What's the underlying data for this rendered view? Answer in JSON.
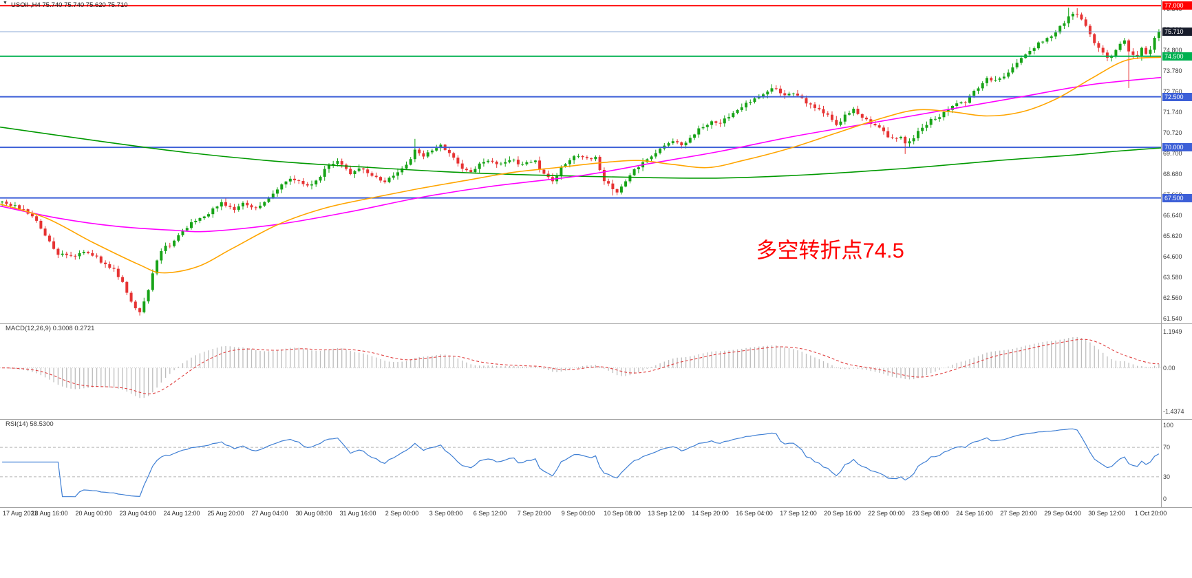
{
  "window": {
    "bg": "#ffffff"
  },
  "header": {
    "dropdown_icon": "▼",
    "title": "USOil-,H4  75.740 75.740 75.620 75.710",
    "symbol": "USOil-",
    "timeframe": "H4",
    "open": "75.740",
    "high": "75.740",
    "low": "75.620",
    "close": "75.710"
  },
  "colors": {
    "candle_up": "#17a317",
    "candle_down": "#e63333",
    "separator": "#a3a3a3",
    "level_dash": "#b5b5b5",
    "tick_text": "#3a3a3a",
    "time_text": "#2b2b2b"
  },
  "chart_data": {
    "type": "candlestick",
    "symbol": "USOil-",
    "timeframe": "H4",
    "last_ohlc": {
      "open": 75.74,
      "high": 75.74,
      "low": 75.62,
      "close": 75.71
    },
    "price_max_view": 77.28,
    "price_min_view": 61.3,
    "y_axis_ticks": [
      "76.840",
      "75.820",
      "74.800",
      "73.780",
      "72.760",
      "71.740",
      "70.720",
      "69.700",
      "68.680",
      "67.660",
      "66.640",
      "65.620",
      "64.600",
      "63.580",
      "62.560",
      "61.540"
    ],
    "hlines": [
      {
        "price": 77.0,
        "label": "77.000",
        "color": "#ff0000",
        "label_bg": "#ff0000",
        "width": 2
      },
      {
        "price": 75.71,
        "label": "75.710",
        "color": "#7d9fd0",
        "label_bg": "#171c2b",
        "width": 1
      },
      {
        "price": 74.5,
        "label": "74.500",
        "color": "#00b050",
        "label_bg": "#00b050",
        "width": 2
      },
      {
        "price": 72.5,
        "label": "72.500",
        "color": "#3c5fd7",
        "label_bg": "#3c5fd7",
        "width": 2
      },
      {
        "price": 70.0,
        "label": "70.000",
        "color": "#3c5fd7",
        "label_bg": "#3c5fd7",
        "width": 2
      },
      {
        "price": 67.5,
        "label": "67.500",
        "color": "#3c5fd7",
        "label_bg": "#3c5fd7",
        "width": 2
      }
    ],
    "annotation": {
      "text": "多空转折点74.5",
      "color": "#ff0000",
      "x_frac": 0.715,
      "price": 65.0
    },
    "num_candles": 270,
    "close_path": [
      [
        0,
        67.25
      ],
      [
        0.012,
        67.05
      ],
      [
        0.02,
        66.85
      ],
      [
        0.03,
        66.3
      ],
      [
        0.038,
        65.6
      ],
      [
        0.048,
        64.75
      ],
      [
        0.06,
        64.6
      ],
      [
        0.072,
        64.9
      ],
      [
        0.082,
        64.55
      ],
      [
        0.09,
        64.15
      ],
      [
        0.098,
        63.9
      ],
      [
        0.104,
        63.3
      ],
      [
        0.109,
        62.7
      ],
      [
        0.113,
        62.25
      ],
      [
        0.119,
        61.9
      ],
      [
        0.125,
        62.6
      ],
      [
        0.13,
        63.8
      ],
      [
        0.137,
        64.9
      ],
      [
        0.145,
        65.2
      ],
      [
        0.152,
        65.6
      ],
      [
        0.16,
        66.1
      ],
      [
        0.17,
        66.5
      ],
      [
        0.18,
        66.8
      ],
      [
        0.19,
        67.3
      ],
      [
        0.2,
        66.95
      ],
      [
        0.21,
        67.25
      ],
      [
        0.22,
        66.95
      ],
      [
        0.23,
        67.5
      ],
      [
        0.24,
        68.1
      ],
      [
        0.25,
        68.45
      ],
      [
        0.258,
        68.3
      ],
      [
        0.266,
        68.0
      ],
      [
        0.274,
        68.55
      ],
      [
        0.282,
        69.1
      ],
      [
        0.29,
        69.35
      ],
      [
        0.3,
        68.7
      ],
      [
        0.31,
        68.95
      ],
      [
        0.32,
        68.55
      ],
      [
        0.33,
        68.3
      ],
      [
        0.34,
        68.7
      ],
      [
        0.35,
        69.1
      ],
      [
        0.358,
        69.95
      ],
      [
        0.364,
        69.55
      ],
      [
        0.372,
        69.85
      ],
      [
        0.38,
        70.1
      ],
      [
        0.388,
        69.6
      ],
      [
        0.396,
        69.05
      ],
      [
        0.404,
        68.75
      ],
      [
        0.412,
        69.15
      ],
      [
        0.42,
        69.3
      ],
      [
        0.43,
        69.2
      ],
      [
        0.44,
        69.45
      ],
      [
        0.45,
        69.1
      ],
      [
        0.46,
        69.35
      ],
      [
        0.468,
        68.7
      ],
      [
        0.476,
        68.25
      ],
      [
        0.482,
        68.9
      ],
      [
        0.49,
        69.4
      ],
      [
        0.498,
        69.55
      ],
      [
        0.506,
        69.4
      ],
      [
        0.513,
        69.6
      ],
      [
        0.52,
        68.4
      ],
      [
        0.527,
        67.95
      ],
      [
        0.533,
        67.75
      ],
      [
        0.54,
        68.5
      ],
      [
        0.548,
        69.0
      ],
      [
        0.556,
        69.3
      ],
      [
        0.564,
        69.75
      ],
      [
        0.572,
        70.05
      ],
      [
        0.58,
        70.3
      ],
      [
        0.588,
        70.1
      ],
      [
        0.596,
        70.6
      ],
      [
        0.604,
        70.95
      ],
      [
        0.612,
        71.25
      ],
      [
        0.62,
        71.1
      ],
      [
        0.628,
        71.55
      ],
      [
        0.636,
        71.9
      ],
      [
        0.644,
        72.2
      ],
      [
        0.652,
        72.45
      ],
      [
        0.66,
        72.75
      ],
      [
        0.668,
        72.9
      ],
      [
        0.676,
        72.6
      ],
      [
        0.684,
        72.7
      ],
      [
        0.692,
        72.35
      ],
      [
        0.7,
        72.05
      ],
      [
        0.708,
        71.75
      ],
      [
        0.716,
        71.45
      ],
      [
        0.722,
        71.05
      ],
      [
        0.728,
        71.6
      ],
      [
        0.736,
        71.85
      ],
      [
        0.744,
        71.5
      ],
      [
        0.752,
        71.15
      ],
      [
        0.76,
        70.9
      ],
      [
        0.768,
        70.35
      ],
      [
        0.776,
        70.6
      ],
      [
        0.782,
        70.1
      ],
      [
        0.788,
        70.45
      ],
      [
        0.794,
        70.9
      ],
      [
        0.802,
        71.3
      ],
      [
        0.81,
        71.55
      ],
      [
        0.818,
        71.9
      ],
      [
        0.826,
        72.25
      ],
      [
        0.832,
        72.15
      ],
      [
        0.838,
        72.6
      ],
      [
        0.846,
        73.1
      ],
      [
        0.852,
        73.4
      ],
      [
        0.86,
        73.3
      ],
      [
        0.868,
        73.55
      ],
      [
        0.876,
        74.1
      ],
      [
        0.884,
        74.55
      ],
      [
        0.89,
        74.85
      ],
      [
        0.898,
        75.2
      ],
      [
        0.906,
        75.5
      ],
      [
        0.914,
        75.9
      ],
      [
        0.922,
        76.4
      ],
      [
        0.928,
        76.65
      ],
      [
        0.934,
        76.3
      ],
      [
        0.94,
        75.6
      ],
      [
        0.946,
        75.0
      ],
      [
        0.952,
        74.6
      ],
      [
        0.958,
        74.35
      ],
      [
        0.964,
        75.0
      ],
      [
        0.97,
        75.3
      ],
      [
        0.975,
        74.6
      ],
      [
        0.98,
        74.4
      ],
      [
        0.985,
        74.95
      ],
      [
        0.99,
        74.45
      ],
      [
        0.995,
        75.3
      ],
      [
        1,
        75.71
      ]
    ],
    "wick_overrides": [
      {
        "t": 0.119,
        "low": 61.72
      },
      {
        "t": 0.358,
        "high": 70.42
      },
      {
        "t": 0.527,
        "low": 67.62
      },
      {
        "t": 0.782,
        "low": 69.67
      },
      {
        "t": 0.922,
        "high": 76.9
      },
      {
        "t": 0.928,
        "high": 76.88
      },
      {
        "t": 0.975,
        "low": 72.93
      }
    ],
    "moving_averages": [
      {
        "name": "slow-green",
        "color": "#009900",
        "path": [
          [
            0,
            71.0
          ],
          [
            0.08,
            70.35
          ],
          [
            0.16,
            69.75
          ],
          [
            0.24,
            69.3
          ],
          [
            0.32,
            69.0
          ],
          [
            0.4,
            68.75
          ],
          [
            0.48,
            68.6
          ],
          [
            0.56,
            68.5
          ],
          [
            0.62,
            68.48
          ],
          [
            0.68,
            68.6
          ],
          [
            0.74,
            68.8
          ],
          [
            0.8,
            69.05
          ],
          [
            0.86,
            69.35
          ],
          [
            0.92,
            69.6
          ],
          [
            0.96,
            69.8
          ],
          [
            1,
            69.97
          ]
        ]
      },
      {
        "name": "mid-magenta",
        "color": "#ff00ff",
        "path": [
          [
            0,
            67.1
          ],
          [
            0.05,
            66.5
          ],
          [
            0.1,
            66.1
          ],
          [
            0.15,
            65.9
          ],
          [
            0.18,
            65.85
          ],
          [
            0.24,
            66.2
          ],
          [
            0.3,
            66.8
          ],
          [
            0.36,
            67.5
          ],
          [
            0.42,
            68.05
          ],
          [
            0.5,
            68.6
          ],
          [
            0.56,
            69.2
          ],
          [
            0.62,
            69.8
          ],
          [
            0.68,
            70.5
          ],
          [
            0.75,
            71.2
          ],
          [
            0.82,
            71.9
          ],
          [
            0.88,
            72.5
          ],
          [
            0.94,
            73.1
          ],
          [
            1,
            73.45
          ]
        ]
      },
      {
        "name": "fast-orange",
        "color": "#ffa500",
        "path": [
          [
            0,
            67.2
          ],
          [
            0.04,
            66.5
          ],
          [
            0.08,
            65.3
          ],
          [
            0.12,
            64.2
          ],
          [
            0.14,
            63.8
          ],
          [
            0.17,
            64.1
          ],
          [
            0.2,
            65.0
          ],
          [
            0.24,
            66.2
          ],
          [
            0.28,
            67.0
          ],
          [
            0.32,
            67.5
          ],
          [
            0.36,
            67.95
          ],
          [
            0.4,
            68.35
          ],
          [
            0.44,
            68.75
          ],
          [
            0.48,
            69.0
          ],
          [
            0.52,
            69.25
          ],
          [
            0.55,
            69.35
          ],
          [
            0.58,
            69.15
          ],
          [
            0.61,
            69.0
          ],
          [
            0.64,
            69.35
          ],
          [
            0.68,
            69.95
          ],
          [
            0.72,
            70.7
          ],
          [
            0.76,
            71.45
          ],
          [
            0.79,
            71.85
          ],
          [
            0.82,
            71.75
          ],
          [
            0.85,
            71.55
          ],
          [
            0.88,
            71.75
          ],
          [
            0.91,
            72.4
          ],
          [
            0.94,
            73.4
          ],
          [
            0.97,
            74.3
          ],
          [
            1,
            74.45
          ]
        ]
      }
    ],
    "indicators": {
      "macd": {
        "label": "MACD(12,26,9) 0.3008 0.2721",
        "fast": 12,
        "slow": 26,
        "signal": 9,
        "value": "0.3008",
        "signal_value": "0.2721",
        "vmax": 1.1949,
        "vmin": -1.4374,
        "axis": [
          "1.1949",
          "0.00",
          "-1.4374"
        ],
        "hist_color": "#bdbdbd",
        "signal_color": "#e04040"
      },
      "rsi": {
        "label": "RSI(14) 58.5300",
        "period": 14,
        "value": "58.5300",
        "axis": [
          "100",
          "70",
          "30",
          "0"
        ],
        "levels": [
          70,
          30
        ],
        "color": "#3f7fd4"
      }
    },
    "x_labels": [
      "17 Aug 2021",
      "18 Aug 16:00",
      "20 Aug 00:00",
      "23 Aug 04:00",
      "24 Aug 12:00",
      "25 Aug 20:00",
      "27 Aug 04:00",
      "30 Aug 08:00",
      "31 Aug 16:00",
      "2 Sep 00:00",
      "3 Sep 08:00",
      "6 Sep 12:00",
      "7 Sep 20:00",
      "9 Sep 00:00",
      "10 Sep 08:00",
      "13 Sep 12:00",
      "14 Sep 20:00",
      "16 Sep 04:00",
      "17 Sep 12:00",
      "20 Sep 16:00",
      "22 Sep 00:00",
      "23 Sep 08:00",
      "24 Sep 16:00",
      "27 Sep 20:00",
      "29 Sep 04:00",
      "30 Sep 12:00",
      "1 Oct 20:00"
    ]
  }
}
